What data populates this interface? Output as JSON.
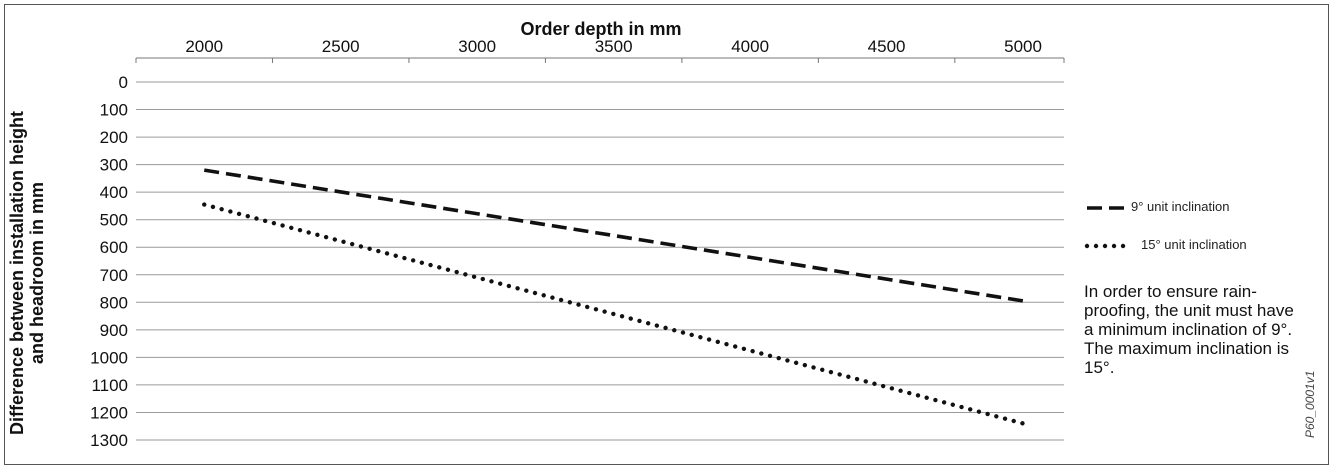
{
  "chart_data": {
    "type": "line",
    "xlabel": "Order depth in mm",
    "ylabel": "Difference between installation height and headroom in mm",
    "xlim": [
      1750,
      5150
    ],
    "ylim": [
      0,
      1300
    ],
    "y_inverted": true,
    "x_axis_position": "top",
    "x_ticks": [
      2000,
      2500,
      3000,
      3500,
      4000,
      4500,
      5000
    ],
    "y_ticks": [
      0,
      100,
      200,
      300,
      400,
      500,
      600,
      700,
      800,
      900,
      1000,
      1100,
      1200,
      1300
    ],
    "grid": "horizontal",
    "legend_position": "right",
    "series": [
      {
        "name": "9° unit inclination",
        "style": "dashed",
        "x": [
          2000,
          5000
        ],
        "y": [
          320,
          795
        ]
      },
      {
        "name": "15° unit inclination",
        "style": "dotted",
        "x": [
          2000,
          5000
        ],
        "y": [
          445,
          1240
        ]
      }
    ]
  },
  "note": "In order to ensure rain-proofing, the unit must have a minimum inclination of 9°. The maximum inclination is 15°.",
  "figure_code": "P60_0001v1",
  "colors": {
    "line": "#111111",
    "grid": "#9a9a9a",
    "axis": "#777777",
    "text": "#111111"
  }
}
